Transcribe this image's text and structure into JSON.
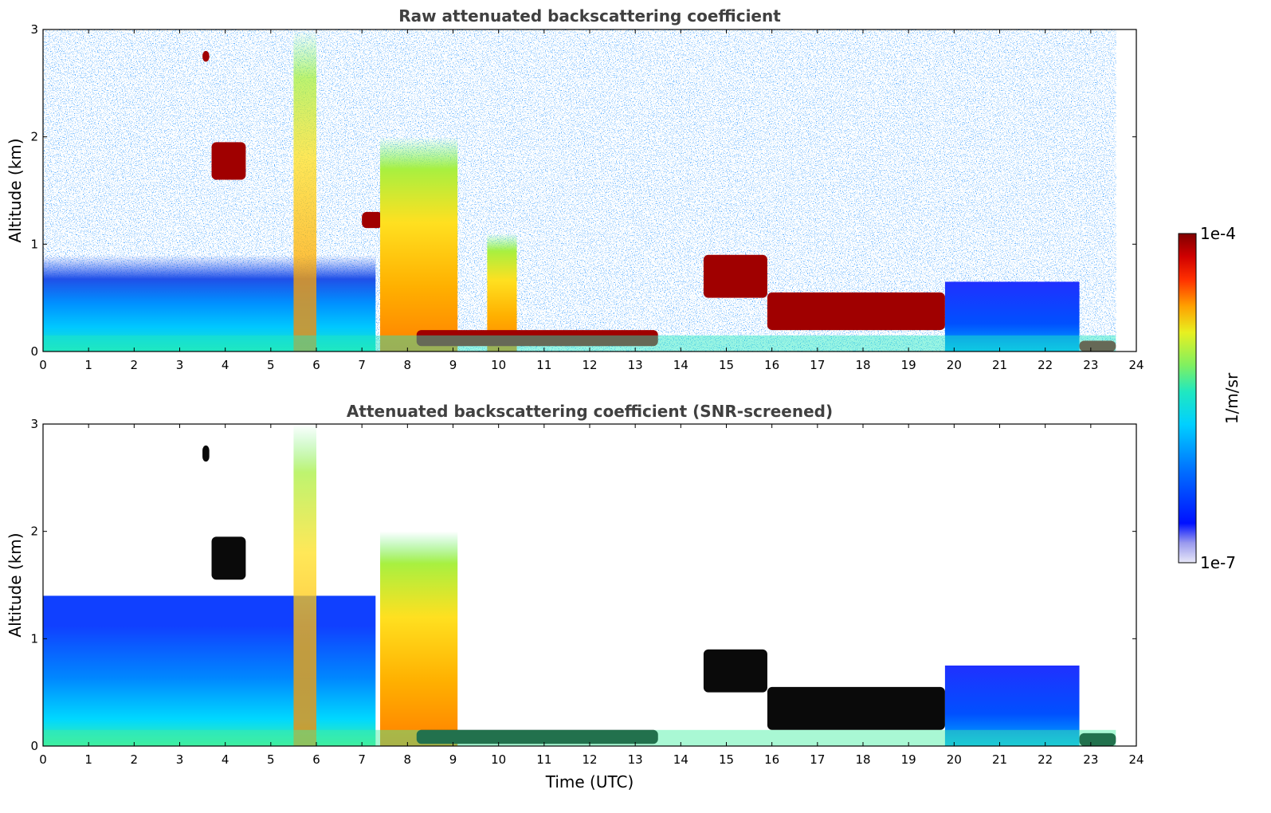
{
  "chart_data": [
    {
      "type": "heatmap",
      "title": "Raw attenuated backscattering coefficient",
      "xlabel": "",
      "ylabel": "Altitude (km)",
      "xlim": [
        0,
        24
      ],
      "ylim": [
        0,
        3
      ],
      "xticks": [
        "0",
        "1",
        "2",
        "3",
        "4",
        "5",
        "6",
        "7",
        "8",
        "9",
        "10",
        "11",
        "12",
        "13",
        "14",
        "15",
        "16",
        "17",
        "18",
        "19",
        "20",
        "21",
        "22",
        "23",
        "24"
      ],
      "yticks": [
        "0",
        "1",
        "2",
        "3"
      ],
      "data_end_hour": 23.55,
      "features": [
        {
          "name": "boundary-layer-aerosol",
          "t0": 0,
          "t1": 7.3,
          "z0": 0,
          "z1": 0.9,
          "level": "moderate"
        },
        {
          "name": "high-cloud-fragment",
          "t0": 3.5,
          "t1": 3.65,
          "z0": 2.7,
          "z1": 2.8,
          "level": "very-high"
        },
        {
          "name": "cloud-layer-near-4h",
          "t0": 3.7,
          "t1": 4.45,
          "z0": 1.6,
          "z1": 1.95,
          "level": "very-high"
        },
        {
          "name": "precipitation-streaks",
          "t0": 5.5,
          "t1": 6.0,
          "z0": 0,
          "z1": 3.0,
          "level": "high"
        },
        {
          "name": "cloud-base-at-7h",
          "t0": 7.0,
          "t1": 7.45,
          "z0": 1.15,
          "z1": 1.3,
          "level": "very-high"
        },
        {
          "name": "rain-event",
          "t0": 7.4,
          "t1": 9.1,
          "z0": 0,
          "z1": 2.0,
          "level": "high"
        },
        {
          "name": "rain-shaft-near-10h",
          "t0": 9.75,
          "t1": 10.4,
          "z0": 0,
          "z1": 1.1,
          "level": "high"
        },
        {
          "name": "low-cloud-base",
          "t0": 8.2,
          "t1": 13.5,
          "z0": 0.05,
          "z1": 0.2,
          "level": "very-high"
        },
        {
          "name": "rising-cloud-layer",
          "t0": 14.5,
          "t1": 15.9,
          "z0": 0.5,
          "z1": 0.9,
          "level": "very-high"
        },
        {
          "name": "cumulus-bases",
          "t0": 15.9,
          "t1": 19.8,
          "z0": 0.2,
          "z1": 0.55,
          "level": "very-high"
        },
        {
          "name": "evening-aerosol",
          "t0": 19.8,
          "t1": 22.75,
          "z0": 0,
          "z1": 0.65,
          "level": "moderate"
        },
        {
          "name": "late-low-cloud",
          "t0": 22.75,
          "t1": 23.55,
          "z0": 0,
          "z1": 0.1,
          "level": "very-high"
        }
      ]
    },
    {
      "type": "heatmap",
      "title": "Attenuated backscattering coefficient (SNR-screened)",
      "xlabel": "Time (UTC)",
      "ylabel": "Altitude (km)",
      "xlim": [
        0,
        24
      ],
      "ylim": [
        0,
        3
      ],
      "xticks": [
        "0",
        "1",
        "2",
        "3",
        "4",
        "5",
        "6",
        "7",
        "8",
        "9",
        "10",
        "11",
        "12",
        "13",
        "14",
        "15",
        "16",
        "17",
        "18",
        "19",
        "20",
        "21",
        "22",
        "23",
        "24"
      ],
      "yticks": [
        "0",
        "1",
        "2",
        "3"
      ],
      "data_end_hour": 23.55,
      "features": [
        {
          "name": "boundary-layer-aerosol",
          "t0": 0,
          "t1": 7.3,
          "z0": 0,
          "z1": 1.4,
          "level": "moderate"
        },
        {
          "name": "high-cloud-fragment",
          "t0": 3.5,
          "t1": 3.65,
          "z0": 2.65,
          "z1": 2.8,
          "level": "saturated"
        },
        {
          "name": "cloud-layer-near-4h",
          "t0": 3.7,
          "t1": 4.45,
          "z0": 1.55,
          "z1": 1.95,
          "level": "saturated"
        },
        {
          "name": "precipitation-streaks",
          "t0": 5.5,
          "t1": 6.0,
          "z0": 0,
          "z1": 3.0,
          "level": "high"
        },
        {
          "name": "rain-event",
          "t0": 7.4,
          "t1": 9.1,
          "z0": 0,
          "z1": 2.0,
          "level": "high"
        },
        {
          "name": "low-cloud-base",
          "t0": 8.2,
          "t1": 13.5,
          "z0": 0.02,
          "z1": 0.15,
          "level": "saturated"
        },
        {
          "name": "rising-cloud-layer",
          "t0": 14.5,
          "t1": 15.9,
          "z0": 0.5,
          "z1": 0.9,
          "level": "saturated"
        },
        {
          "name": "cumulus-bases",
          "t0": 15.9,
          "t1": 19.8,
          "z0": 0.15,
          "z1": 0.55,
          "level": "saturated"
        },
        {
          "name": "evening-aerosol",
          "t0": 19.8,
          "t1": 22.75,
          "z0": 0,
          "z1": 0.75,
          "level": "moderate"
        },
        {
          "name": "late-low-cloud",
          "t0": 22.75,
          "t1": 23.55,
          "z0": 0,
          "z1": 0.12,
          "level": "saturated"
        }
      ]
    }
  ],
  "colorbar": {
    "max_label": "1e-4",
    "min_label": "1e-7",
    "unit_label": "1/m/sr",
    "colors": [
      "#e8e8f8",
      "#c8c8f0",
      "#9a9aee",
      "#5050f0",
      "#0010ff",
      "#0060ff",
      "#00a8ff",
      "#00d8ff",
      "#20e8c0",
      "#60f080",
      "#a8f040",
      "#e8f020",
      "#ffd000",
      "#ffa000",
      "#ff6000",
      "#ff2000",
      "#d00000",
      "#800000"
    ]
  }
}
